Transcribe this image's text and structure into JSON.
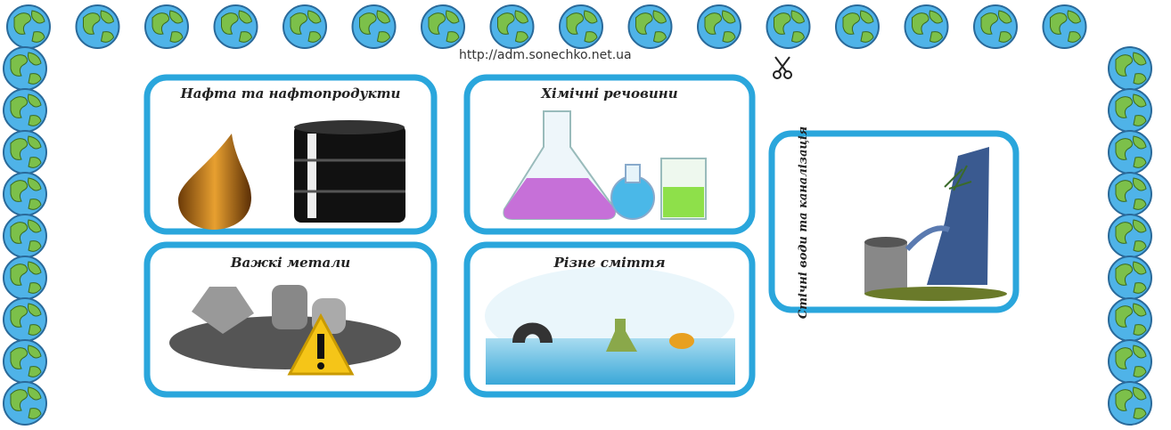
{
  "url": "http://adm.sonechko.net.ua",
  "cards": [
    {
      "title": "Нафта та нафтопродукти"
    },
    {
      "title": "Хімічні речовини"
    },
    {
      "title": "Важкі метали"
    },
    {
      "title": "Різне сміття"
    },
    {
      "title": "Стічні води та каналізація"
    }
  ]
}
